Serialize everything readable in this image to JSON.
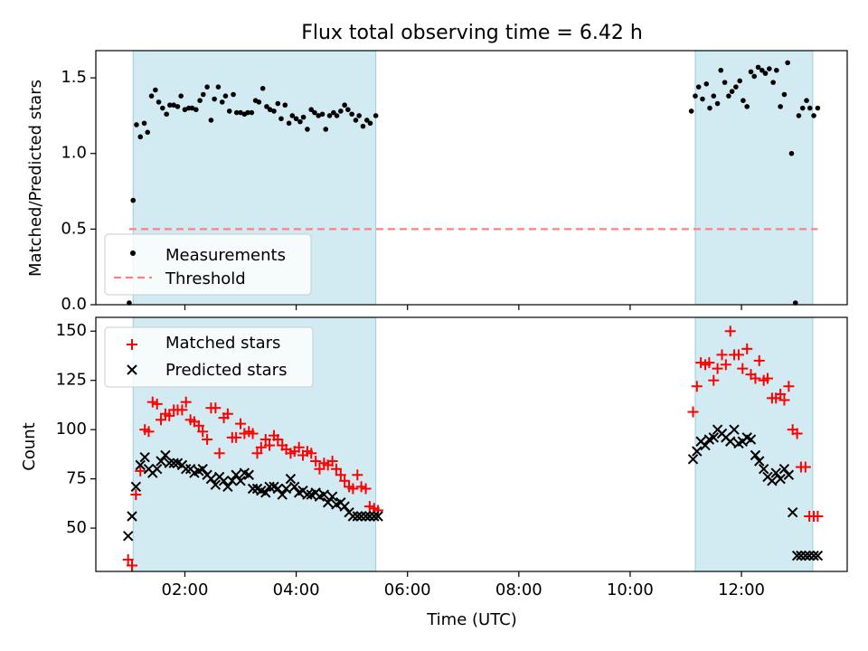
{
  "chart_data": [
    {
      "type": "scatter",
      "panel": "top",
      "title": "Flux total observing time = 6.42 h",
      "xlabel": "",
      "ylabel": "Matched/Predicted stars",
      "xlim": [
        0.4,
        13.9
      ],
      "ylim": [
        0,
        1.68
      ],
      "yticks": [
        0,
        0.5,
        1.0,
        1.5
      ],
      "ytick_labels": [
        "0.0",
        "0.5",
        "1.0",
        "1.5"
      ],
      "shaded_intervals": [
        [
          1.07,
          5.43
        ],
        [
          11.17,
          13.28
        ]
      ],
      "legend": {
        "placement": "lower-left",
        "entries": [
          {
            "label": "Measurements",
            "marker": "dot",
            "color": "#000000"
          },
          {
            "label": "Threshold",
            "marker": "dashed-line",
            "color": "#ff8080"
          }
        ]
      },
      "series": [
        {
          "name": "Measurements",
          "color": "#000000",
          "marker": "dot",
          "x": [
            1.0,
            1.07,
            1.13,
            1.2,
            1.27,
            1.33,
            1.4,
            1.47,
            1.53,
            1.6,
            1.67,
            1.73,
            1.8,
            1.87,
            1.93,
            2.0,
            2.07,
            2.13,
            2.2,
            2.27,
            2.33,
            2.4,
            2.47,
            2.53,
            2.6,
            2.67,
            2.73,
            2.8,
            2.87,
            2.93,
            3.0,
            3.07,
            3.13,
            3.2,
            3.27,
            3.33,
            3.4,
            3.47,
            3.53,
            3.6,
            3.67,
            3.73,
            3.8,
            3.87,
            3.93,
            4.0,
            4.07,
            4.13,
            4.2,
            4.27,
            4.33,
            4.4,
            4.47,
            4.53,
            4.6,
            4.67,
            4.73,
            4.8,
            4.87,
            4.93,
            5.0,
            5.07,
            5.13,
            5.2,
            5.27,
            5.33,
            5.43,
            11.1,
            11.17,
            11.23,
            11.3,
            11.37,
            11.43,
            11.5,
            11.57,
            11.63,
            11.7,
            11.77,
            11.83,
            11.9,
            11.97,
            12.03,
            12.1,
            12.17,
            12.23,
            12.3,
            12.37,
            12.43,
            12.5,
            12.57,
            12.63,
            12.7,
            12.77,
            12.83,
            12.9,
            12.97,
            13.03,
            13.1,
            13.17,
            13.23,
            13.3,
            13.37
          ],
          "y": [
            0.0,
            0.69,
            1.19,
            1.11,
            1.2,
            1.14,
            1.38,
            1.42,
            1.34,
            1.3,
            1.26,
            1.32,
            1.32,
            1.31,
            1.38,
            1.29,
            1.3,
            1.3,
            1.29,
            1.35,
            1.39,
            1.44,
            1.22,
            1.36,
            1.44,
            1.34,
            1.38,
            1.28,
            1.39,
            1.27,
            1.27,
            1.26,
            1.27,
            1.27,
            1.35,
            1.34,
            1.43,
            1.31,
            1.29,
            1.28,
            1.33,
            1.23,
            1.32,
            1.2,
            1.25,
            1.23,
            1.21,
            1.24,
            1.16,
            1.29,
            1.27,
            1.25,
            1.26,
            1.16,
            1.25,
            1.27,
            1.25,
            1.28,
            1.32,
            1.29,
            1.26,
            1.22,
            1.25,
            1.18,
            1.22,
            1.2,
            1.25,
            1.28,
            1.38,
            1.44,
            1.36,
            1.46,
            1.3,
            1.38,
            1.33,
            1.55,
            1.47,
            1.38,
            1.41,
            1.44,
            1.48,
            1.35,
            1.31,
            1.54,
            1.51,
            1.57,
            1.55,
            1.53,
            1.56,
            1.47,
            1.55,
            1.31,
            1.39,
            1.6,
            1.0,
            0.0,
            1.25,
            1.3,
            1.35,
            1.3,
            1.25,
            1.3
          ],
          "note": "approximate readings"
        },
        {
          "name": "Threshold",
          "color": "#ff8080",
          "style": "dashed",
          "x": [
            1.0,
            13.37
          ],
          "y": [
            0.5,
            0.5
          ]
        }
      ]
    },
    {
      "type": "scatter",
      "panel": "bottom",
      "title": "",
      "xlabel": "Time (UTC)",
      "ylabel": "Count",
      "xlim": [
        0.4,
        13.9
      ],
      "ylim": [
        28,
        157
      ],
      "xticks": [
        2,
        4,
        6,
        8,
        10,
        12
      ],
      "xtick_labels": [
        "02:00",
        "04:00",
        "06:00",
        "08:00",
        "10:00",
        "12:00"
      ],
      "yticks": [
        50,
        75,
        100,
        125,
        150
      ],
      "ytick_labels": [
        "50",
        "75",
        "100",
        "125",
        "150"
      ],
      "shaded_intervals": [
        [
          1.07,
          5.43
        ],
        [
          11.17,
          13.28
        ]
      ],
      "legend": {
        "placement": "top-left",
        "entries": [
          {
            "label": "Matched stars",
            "marker": "plus",
            "color": "#ff0000"
          },
          {
            "label": "Predicted stars",
            "marker": "x",
            "color": "#000000"
          }
        ]
      },
      "series": [
        {
          "name": "Matched stars",
          "color": "#ff0000",
          "marker": "plus",
          "x": [
            0.98,
            1.05,
            1.12,
            1.2,
            1.28,
            1.35,
            1.42,
            1.5,
            1.57,
            1.65,
            1.72,
            1.8,
            1.87,
            1.95,
            2.02,
            2.1,
            2.17,
            2.25,
            2.32,
            2.4,
            2.47,
            2.55,
            2.62,
            2.7,
            2.77,
            2.85,
            2.92,
            3.0,
            3.07,
            3.15,
            3.22,
            3.3,
            3.37,
            3.45,
            3.52,
            3.6,
            3.67,
            3.75,
            3.82,
            3.9,
            3.97,
            4.05,
            4.12,
            4.2,
            4.27,
            4.35,
            4.42,
            4.5,
            4.57,
            4.65,
            4.72,
            4.8,
            4.87,
            4.95,
            5.02,
            5.1,
            5.17,
            5.25,
            5.32,
            5.4,
            5.47,
            11.13,
            11.2,
            11.27,
            11.35,
            11.42,
            11.5,
            11.57,
            11.65,
            11.72,
            11.8,
            11.87,
            11.95,
            12.02,
            12.1,
            12.17,
            12.25,
            12.32,
            12.4,
            12.47,
            12.55,
            12.62,
            12.7,
            12.77,
            12.85,
            12.92,
            13.0,
            13.07,
            13.15,
            13.22,
            13.3,
            13.37
          ],
          "y": [
            34,
            31,
            67,
            79,
            100,
            99,
            114,
            113,
            105,
            108,
            107,
            110,
            110,
            110,
            114,
            105,
            104,
            102,
            99,
            95,
            111,
            111,
            88,
            106,
            108,
            96,
            96,
            103,
            98,
            99,
            98,
            88,
            91,
            95,
            92,
            97,
            95,
            92,
            90,
            88,
            89,
            91,
            87,
            89,
            88,
            84,
            80,
            83,
            82,
            84,
            80,
            77,
            74,
            71,
            70,
            77,
            71,
            70,
            61,
            60,
            59,
            109,
            122,
            134,
            133,
            134,
            125,
            131,
            138,
            133,
            150,
            138,
            138,
            131,
            141,
            128,
            126,
            135,
            125,
            126,
            116,
            116,
            118,
            115,
            122,
            100,
            98,
            81,
            81,
            56,
            56,
            56
          ]
        },
        {
          "name": "Predicted stars",
          "color": "#000000",
          "marker": "x",
          "x": [
            0.98,
            1.05,
            1.12,
            1.2,
            1.28,
            1.35,
            1.42,
            1.5,
            1.57,
            1.65,
            1.72,
            1.8,
            1.87,
            1.95,
            2.02,
            2.1,
            2.17,
            2.25,
            2.32,
            2.4,
            2.47,
            2.55,
            2.62,
            2.7,
            2.77,
            2.85,
            2.92,
            3.0,
            3.07,
            3.15,
            3.22,
            3.3,
            3.37,
            3.45,
            3.52,
            3.6,
            3.67,
            3.75,
            3.82,
            3.9,
            3.97,
            4.05,
            4.12,
            4.2,
            4.27,
            4.35,
            4.42,
            4.5,
            4.57,
            4.65,
            4.72,
            4.8,
            4.87,
            4.95,
            5.02,
            5.1,
            5.17,
            5.25,
            5.32,
            5.4,
            5.47,
            11.13,
            11.2,
            11.27,
            11.35,
            11.42,
            11.5,
            11.57,
            11.65,
            11.72,
            11.8,
            11.87,
            11.95,
            12.02,
            12.1,
            12.17,
            12.25,
            12.32,
            12.4,
            12.47,
            12.55,
            12.62,
            12.7,
            12.77,
            12.85,
            12.92,
            13.0,
            13.07,
            13.15,
            13.22,
            13.3,
            13.37
          ],
          "y": [
            46,
            56,
            71,
            82,
            86,
            80,
            78,
            80,
            84,
            87,
            83,
            83,
            83,
            82,
            80,
            80,
            78,
            79,
            80,
            77,
            75,
            72,
            76,
            74,
            71,
            74,
            77,
            74,
            78,
            77,
            70,
            70,
            69,
            68,
            71,
            71,
            70,
            67,
            70,
            75,
            71,
            68,
            69,
            67,
            67,
            68,
            66,
            67,
            63,
            66,
            62,
            63,
            61,
            58,
            56,
            56,
            56,
            56,
            56,
            56,
            56,
            85,
            89,
            94,
            92,
            95,
            96,
            100,
            98,
            96,
            94,
            100,
            93,
            94,
            96,
            95,
            87,
            84,
            80,
            76,
            74,
            78,
            75,
            80,
            77,
            58,
            36,
            36,
            36,
            36,
            36,
            36
          ]
        }
      ]
    }
  ]
}
